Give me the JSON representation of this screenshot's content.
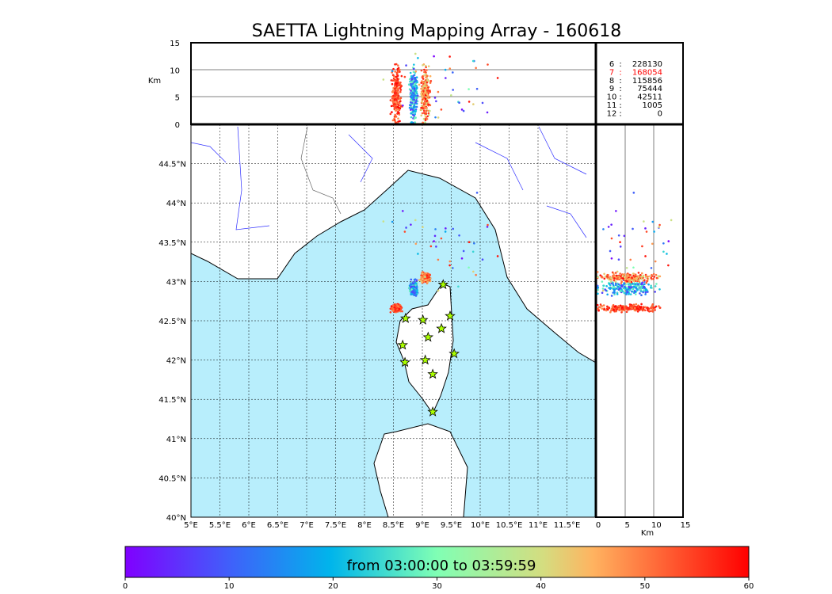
{
  "chart_data": {
    "type": "scatter",
    "title": "SAETTA Lightning Mapping Array - 160618",
    "map": {
      "lon_range": [
        5,
        12
      ],
      "lat_range": [
        40,
        45
      ],
      "lon_ticks": [
        "5°E",
        "5.5°E",
        "6°E",
        "6.5°E",
        "7°E",
        "7.5°E",
        "8°E",
        "8.5°E",
        "9°E",
        "9.5°E",
        "10°E",
        "10.5°E",
        "11°E",
        "11.5°E"
      ],
      "lat_ticks": [
        "40°N",
        "40.5°N",
        "41°N",
        "41.5°N",
        "42°N",
        "42.5°N",
        "43°N",
        "43.5°N",
        "44°N",
        "44.5°N"
      ],
      "sea_color": "#b8eefc"
    },
    "altitude_panel": {
      "ylabel": "Km",
      "ylim": [
        0,
        15
      ],
      "ticks": [
        "0",
        "5",
        "10",
        "15"
      ]
    },
    "side_panel": {
      "xlabel": "Km",
      "xlim": [
        0,
        15
      ],
      "ticks": [
        "0",
        "5",
        "10",
        "15"
      ]
    },
    "stations": [
      [
        8.71,
        42.53
      ],
      [
        9.01,
        42.51
      ],
      [
        9.48,
        42.56
      ],
      [
        9.36,
        42.96
      ],
      [
        9.33,
        42.4
      ],
      [
        9.1,
        42.29
      ],
      [
        8.66,
        42.19
      ],
      [
        9.55,
        42.08
      ],
      [
        9.05,
        42.0
      ],
      [
        8.7,
        41.97
      ],
      [
        9.18,
        41.82
      ],
      [
        9.18,
        41.34
      ]
    ],
    "sources": [
      {
        "lon": 8.55,
        "lat": 42.66,
        "spread": [
          0.12,
          0.06
        ],
        "time": [
          48,
          60
        ]
      },
      {
        "lon": 8.85,
        "lat": 42.92,
        "spread": [
          0.1,
          0.12
        ],
        "time": [
          5,
          30
        ]
      },
      {
        "lon": 9.05,
        "lat": 43.05,
        "spread": [
          0.12,
          0.08
        ],
        "time": [
          38,
          60
        ]
      },
      {
        "lon": 9.5,
        "lat": 43.5,
        "spread": [
          1.5,
          0.8
        ],
        "time": [
          0,
          60
        ]
      }
    ],
    "counts": [
      {
        "label": "6",
        "value": "228130",
        "color": "#000000"
      },
      {
        "label": "7",
        "value": "168054",
        "color": "#ff0000"
      },
      {
        "label": "8",
        "value": "115856",
        "color": "#000000"
      },
      {
        "label": "9",
        "value": "75444",
        "color": "#000000"
      },
      {
        "label": "10",
        "value": "42511",
        "color": "#000000"
      },
      {
        "label": "11",
        "value": "1005",
        "color": "#000000"
      },
      {
        "label": "12",
        "value": "0",
        "color": "#000000"
      }
    ],
    "colorbar": {
      "label": "from 03:00:00 to 03:59:59",
      "range": [
        0,
        60
      ],
      "ticks": [
        "0",
        "10",
        "20",
        "30",
        "40",
        "50",
        "60"
      ],
      "colormap": "rainbow"
    }
  }
}
